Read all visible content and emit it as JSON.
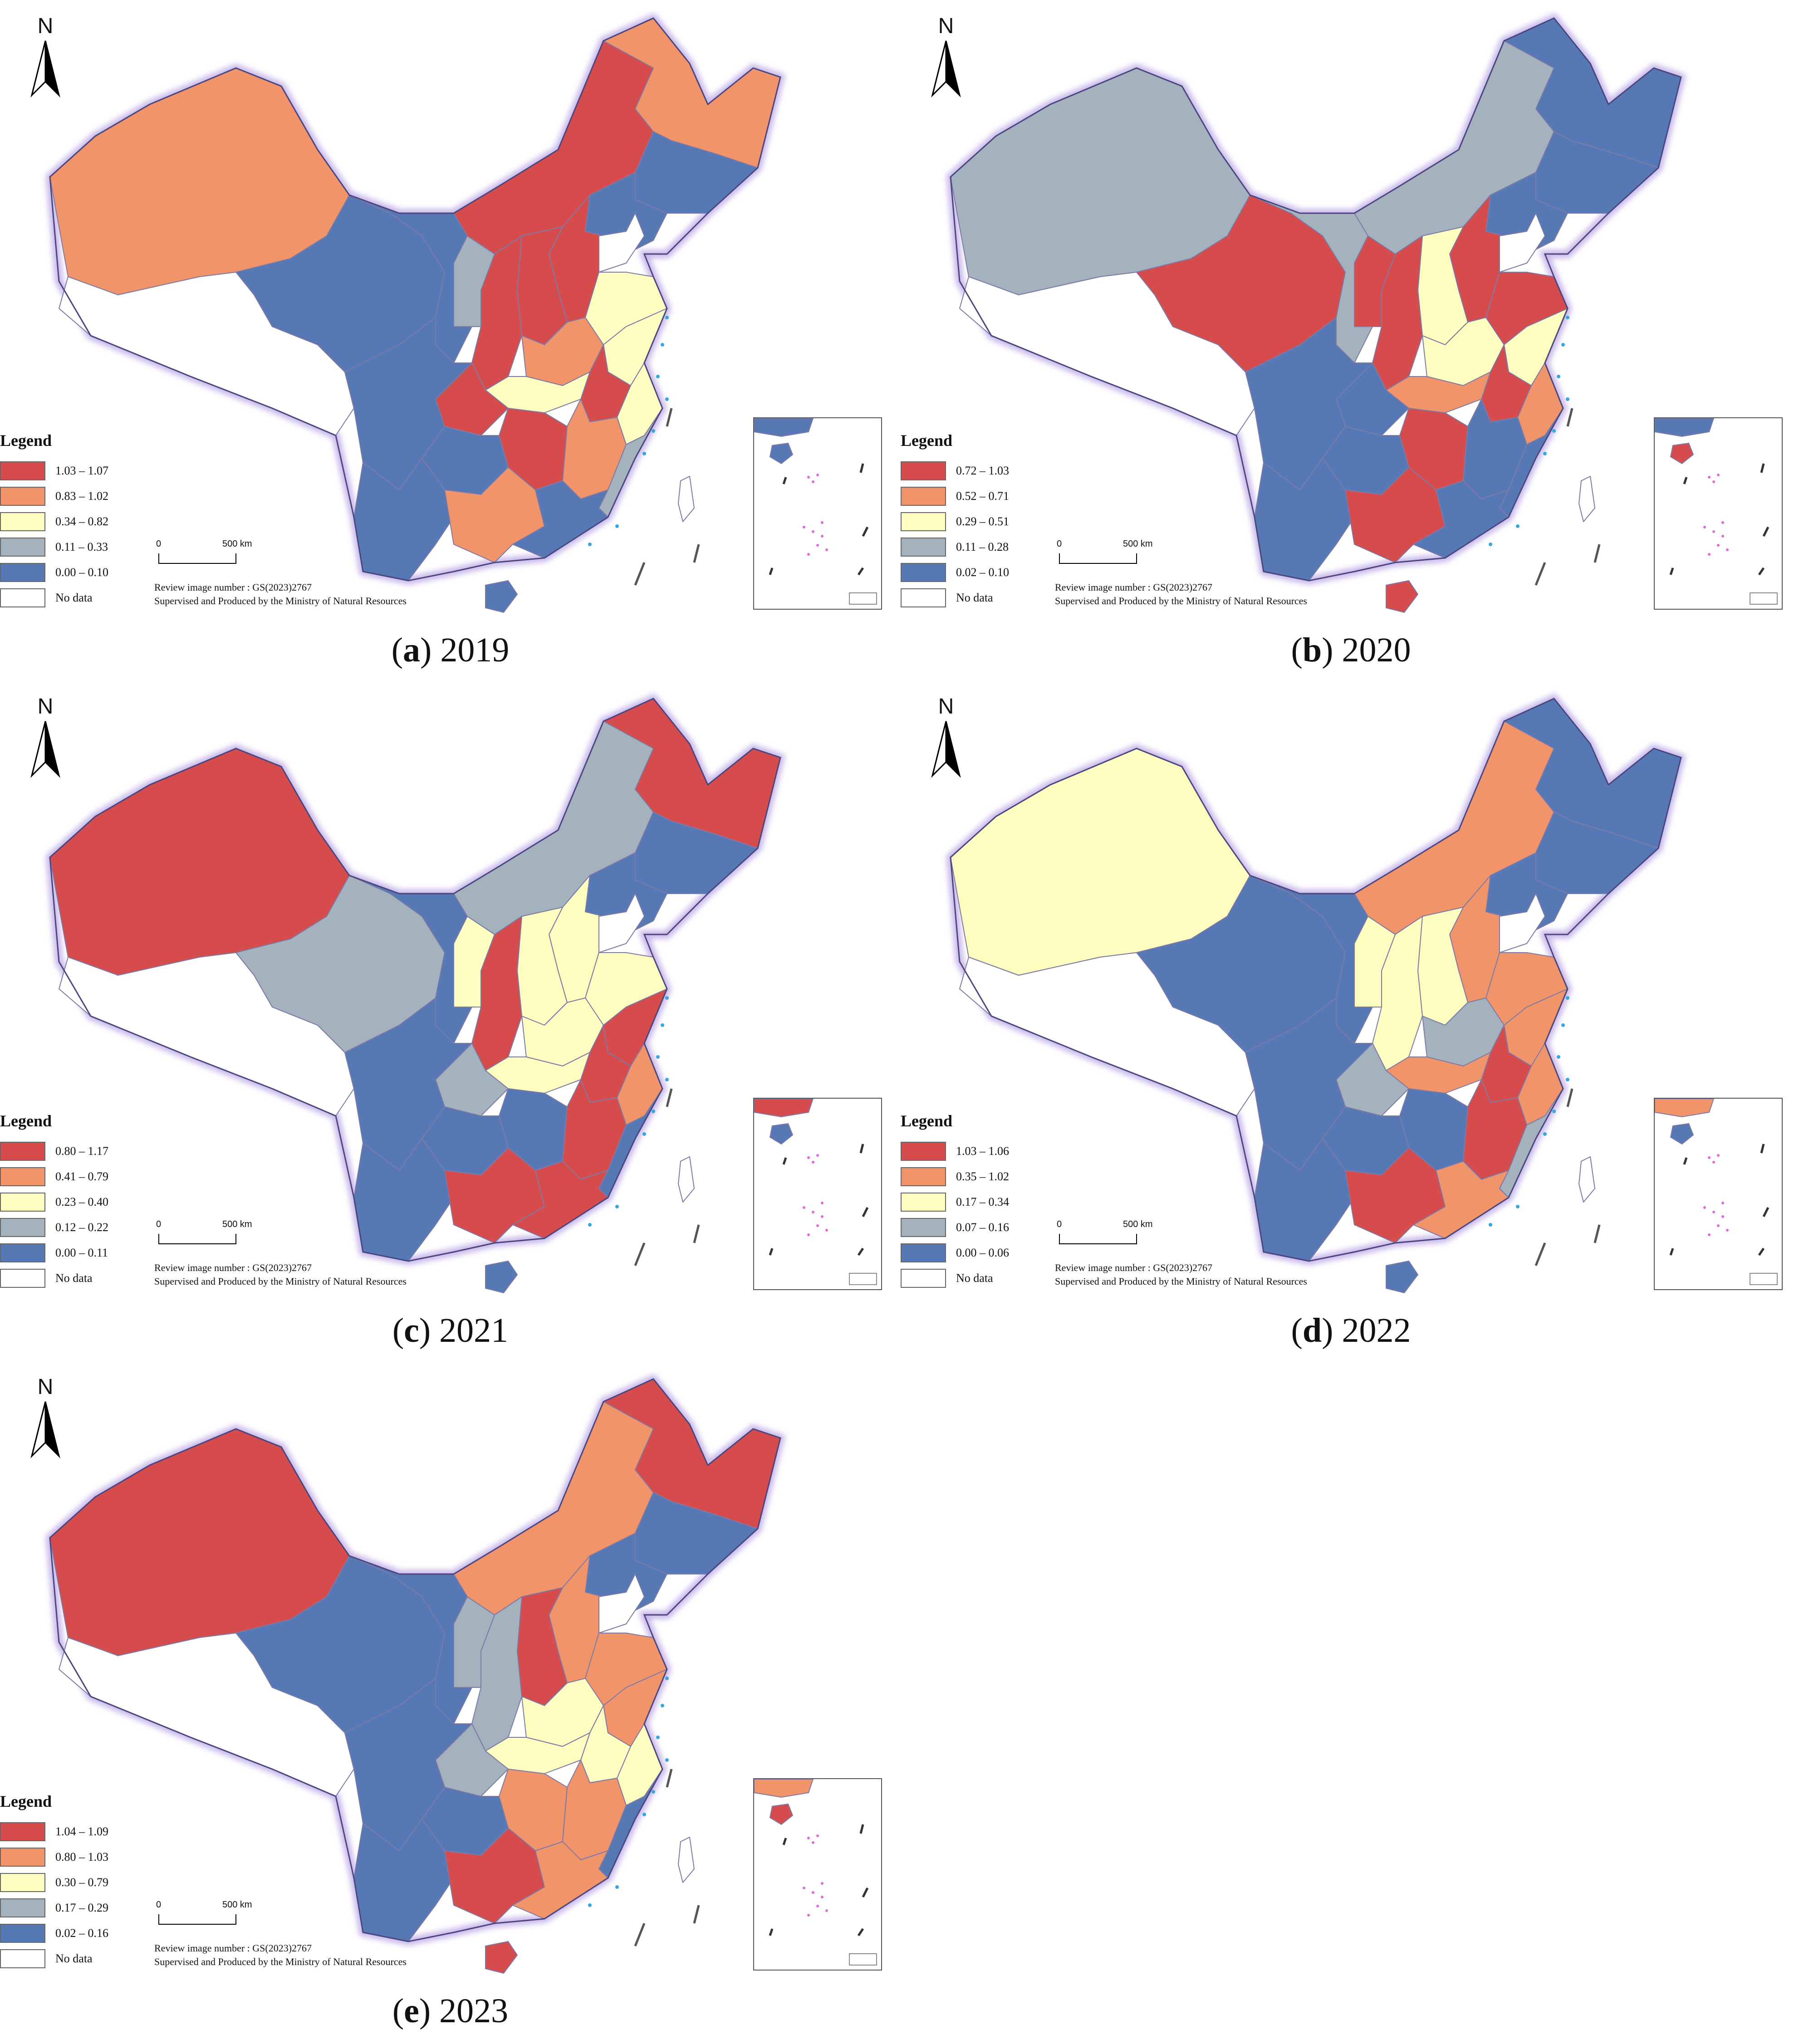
{
  "colors": {
    "class1": "#d64b4b",
    "class2": "#f2946a",
    "class3": "#fdfdc0",
    "class4": "#a4b2bd",
    "class5": "#5679b5",
    "nodata": "#ffffff",
    "boundary": "#7d7aa8",
    "halo": "#c8b8ea",
    "islands": "#e06ad8",
    "coast": "#3aa6e0"
  },
  "north_label": "N",
  "legend_title": "Legend",
  "no_data_label": "No data",
  "scale": {
    "zero": "0",
    "distance": "500 km"
  },
  "review_text": "Review image number : GS(2023)2767",
  "producer_text": "Supervised and Produced by the Ministry of Natural Resources",
  "panels": [
    {
      "letter": "a",
      "year": "2019",
      "legend": [
        "1.03 – 1.07",
        "0.83 – 1.02",
        "0.34 – 0.82",
        "0.11 – 0.33",
        "0.00 – 0.10"
      ],
      "classes": {
        "xinjiang": 2,
        "tibet": 0,
        "qinghai": 5,
        "gansu": 5,
        "innermongolia": 1,
        "heilongjiang": 2,
        "jilin": 5,
        "liaoning": 5,
        "ningxia": 4,
        "shaanxi": 1,
        "shanxi": 1,
        "hebei": 1,
        "shandong": 3,
        "henan": 2,
        "jiangsu": 3,
        "anhui": 1,
        "hubei": 3,
        "sichuan": 5,
        "chongqing": 1,
        "hunan": 1,
        "jiangxi": 2,
        "zhejiang": 3,
        "fujian": 4,
        "guangdong": 5,
        "guangxi": 2,
        "guizhou": 5,
        "yunnan": 5,
        "hainan": 5,
        "taiwan": 0
      }
    },
    {
      "letter": "b",
      "year": "2020",
      "legend": [
        "0.72 – 1.03",
        "0.52 – 0.71",
        "0.29 – 0.51",
        "0.11 – 0.28",
        "0.02 – 0.10"
      ],
      "classes": {
        "xinjiang": 4,
        "tibet": 0,
        "qinghai": 1,
        "gansu": 4,
        "innermongolia": 4,
        "heilongjiang": 5,
        "jilin": 5,
        "liaoning": 5,
        "ningxia": 1,
        "shaanxi": 1,
        "shanxi": 3,
        "hebei": 1,
        "shandong": 1,
        "henan": 3,
        "jiangsu": 3,
        "anhui": 1,
        "hubei": 2,
        "sichuan": 5,
        "chongqing": 5,
        "hunan": 1,
        "jiangxi": 5,
        "zhejiang": 2,
        "fujian": 5,
        "guangdong": 5,
        "guangxi": 1,
        "guizhou": 5,
        "yunnan": 5,
        "hainan": 1,
        "taiwan": 0
      }
    },
    {
      "letter": "c",
      "year": "2021",
      "legend": [
        "0.80 – 1.17",
        "0.41 – 0.79",
        "0.23 – 0.40",
        "0.12 – 0.22",
        "0.00 – 0.11"
      ],
      "classes": {
        "xinjiang": 1,
        "tibet": 0,
        "qinghai": 4,
        "gansu": 5,
        "innermongolia": 4,
        "heilongjiang": 1,
        "jilin": 5,
        "liaoning": 5,
        "ningxia": 3,
        "shaanxi": 1,
        "shanxi": 3,
        "hebei": 3,
        "shandong": 3,
        "henan": 3,
        "jiangsu": 1,
        "anhui": 1,
        "hubei": 3,
        "sichuan": 5,
        "chongqing": 4,
        "hunan": 5,
        "jiangxi": 1,
        "zhejiang": 2,
        "fujian": 5,
        "guangdong": 1,
        "guangxi": 1,
        "guizhou": 5,
        "yunnan": 5,
        "hainan": 5,
        "taiwan": 0
      }
    },
    {
      "letter": "d",
      "year": "2022",
      "legend": [
        "1.03 – 1.06",
        "0.35 – 1.02",
        "0.17 – 0.34",
        "0.07 – 0.16",
        "0.00 – 0.06"
      ],
      "classes": {
        "xinjiang": 3,
        "tibet": 0,
        "qinghai": 5,
        "gansu": 5,
        "innermongolia": 2,
        "heilongjiang": 5,
        "jilin": 5,
        "liaoning": 5,
        "ningxia": 3,
        "shaanxi": 3,
        "shanxi": 3,
        "hebei": 2,
        "shandong": 2,
        "henan": 4,
        "jiangsu": 2,
        "anhui": 1,
        "hubei": 2,
        "sichuan": 5,
        "chongqing": 4,
        "hunan": 5,
        "jiangxi": 1,
        "zhejiang": 2,
        "fujian": 4,
        "guangdong": 2,
        "guangxi": 1,
        "guizhou": 5,
        "yunnan": 5,
        "hainan": 5,
        "taiwan": 0
      }
    },
    {
      "letter": "e",
      "year": "2023",
      "legend": [
        "1.04 – 1.09",
        "0.80 – 1.03",
        "0.30 – 0.79",
        "0.17 – 0.29",
        "0.02 – 0.16"
      ],
      "classes": {
        "xinjiang": 1,
        "tibet": 0,
        "qinghai": 5,
        "gansu": 5,
        "innermongolia": 2,
        "heilongjiang": 1,
        "jilin": 5,
        "liaoning": 5,
        "ningxia": 4,
        "shaanxi": 4,
        "shanxi": 1,
        "hebei": 2,
        "shandong": 2,
        "henan": 3,
        "jiangsu": 2,
        "anhui": 3,
        "hubei": 3,
        "sichuan": 5,
        "chongqing": 4,
        "hunan": 2,
        "jiangxi": 2,
        "zhejiang": 3,
        "fujian": 5,
        "guangdong": 2,
        "guangxi": 1,
        "guizhou": 5,
        "yunnan": 5,
        "hainan": 1,
        "taiwan": 0
      }
    }
  ]
}
